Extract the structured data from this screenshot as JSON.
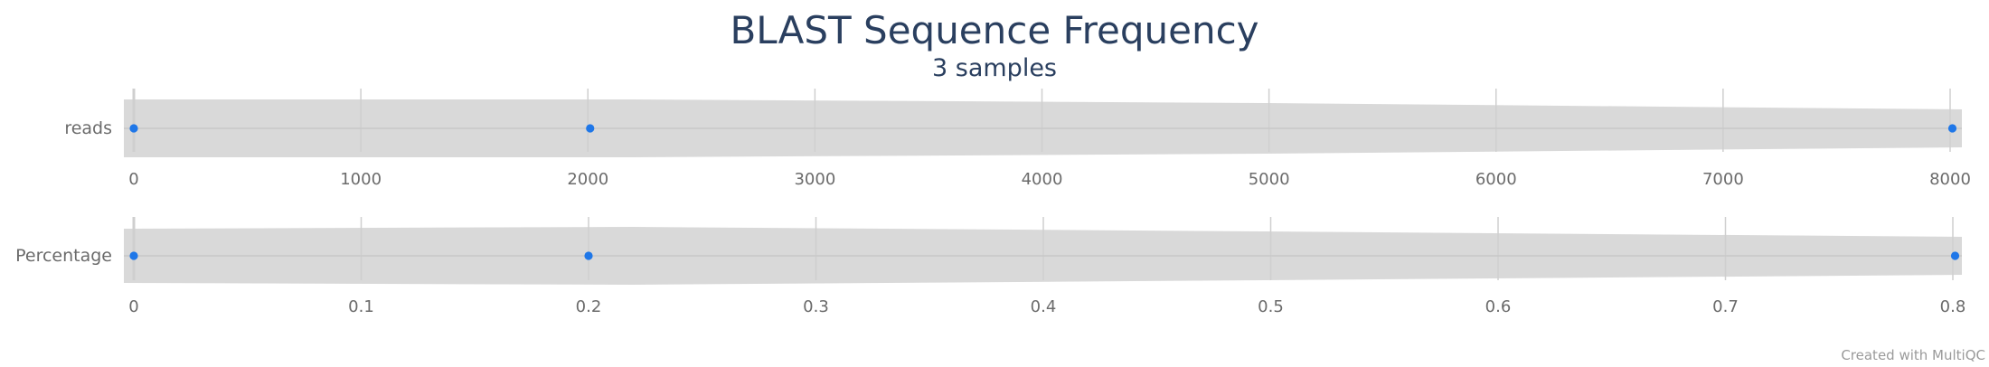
{
  "chart_data": {
    "type": "violin",
    "title": "BLAST Sequence Frequency",
    "subtitle": "3 samples",
    "panels": [
      {
        "name": "reads",
        "xlim": [
          0,
          8000
        ],
        "ticks": [
          "0",
          "1000",
          "2000",
          "3000",
          "4000",
          "5000",
          "6000",
          "7000",
          "8000"
        ],
        "points": [
          0,
          2010,
          8010
        ]
      },
      {
        "name": "Percentage",
        "xlim": [
          0,
          0.8
        ],
        "ticks": [
          "0",
          "0.1",
          "0.2",
          "0.3",
          "0.4",
          "0.5",
          "0.6",
          "0.7",
          "0.8"
        ],
        "points": [
          0,
          0.2,
          0.801
        ]
      }
    ],
    "colors": {
      "violin": "#d9d9d9",
      "point": "#1f77e8",
      "grid": "#cfcfcf"
    }
  },
  "footer": {
    "credit": "Created with MultiQC"
  }
}
